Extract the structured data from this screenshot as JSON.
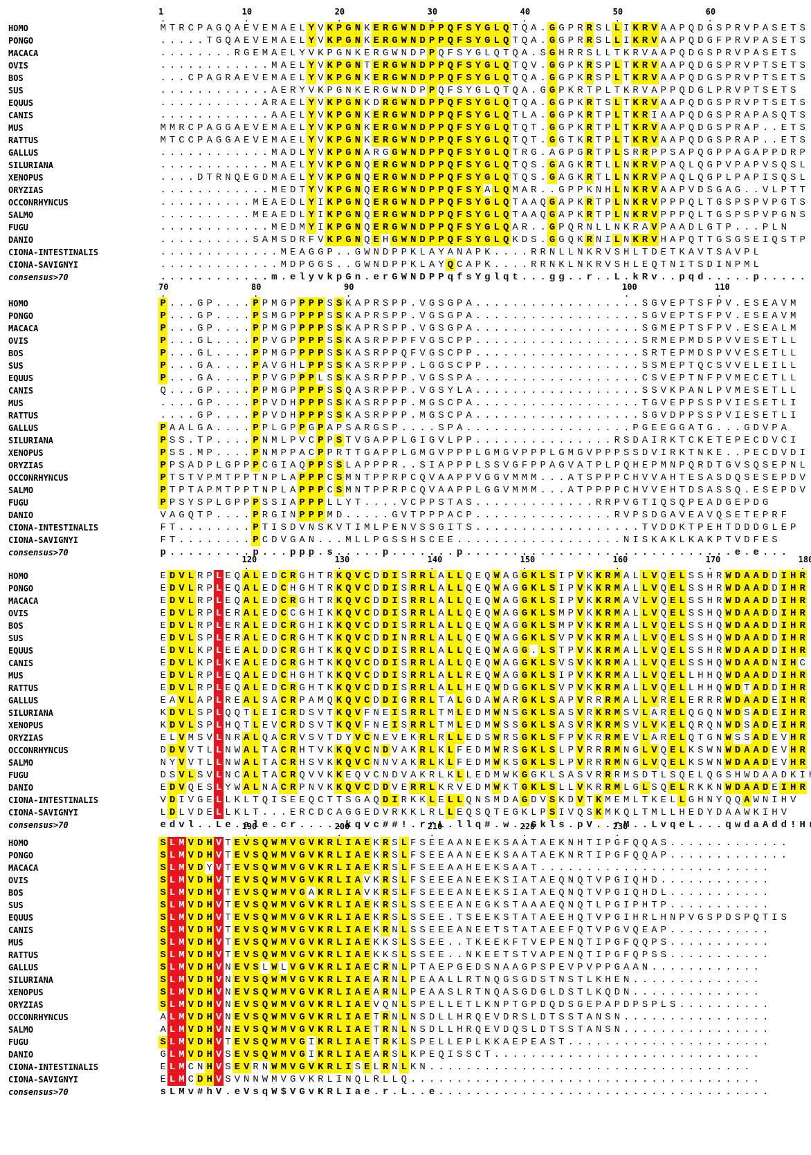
{
  "consensus_label": "consensus>70",
  "blocks": [
    {
      "start": 1,
      "ticks": [
        "1",
        "10",
        "20",
        "30",
        "40",
        "50",
        "60"
      ],
      "tick_positions": [
        1,
        10,
        20,
        30,
        40,
        50,
        60
      ],
      "rows": [
        {
          "name": "HOMO",
          "seq": "MTRCPAGQAEVEMAELYVKPGNKERGWNDPPQFSYGLQTQA.GGPRRSLLIKRVAAPQDGSPRVPASETS"
        },
        {
          "name": "PONGO",
          "seq": ".....TGQAEVEMAELYVKPGNKERGWNDPPQFSYGLQTQA.GGPRRSLLIKRVAAPQDGFPRVPASETS"
        },
        {
          "name": "MACACA",
          "seq": "........RGEMAELYVKPGNKERGWNDPPQFSYGLQTQA.SGHRRSLLTKRVAAPQDGSPRVPASETS"
        },
        {
          "name": "OVIS",
          "seq": "............MAELYVKPGNTERGWNDPPQFSYGLQTQV.GGPKRSPLTKRVAAPQDGSPRVPTSETS"
        },
        {
          "name": "BOS",
          "seq": "...CPAGRAEVEMAELYVKPGNKERGWNDPPQFSYGLQTQA.GGPKRSPLTKRVAAPQDGSPRVPTSETS"
        },
        {
          "name": "SUS",
          "seq": "............AERYVKPGNKERGWNDPPQFSYGLQTQA.GGPKRTPLTKRVAPPQDGLPRVPTSETS"
        },
        {
          "name": "EQUUS",
          "seq": "...........ARAELYVKPGNKDRGWNDPPQFSYGLQTQA.GGPKRTSLTKRVAAPQDGSPRVPTSETS"
        },
        {
          "name": "CANIS",
          "seq": "............AAELYVKPGNKERGWNDPPQFSYGLQTLA.GGPKRTPLTKRIAAPQDGSPRAPASQTS"
        },
        {
          "name": "MUS",
          "seq": "MMRCPAGGAEVEMAELYVKPGNKERGWNDPPQFSYGLQTQT.GGPKRTPLTKRVAAPQDGSPRAP..ETS"
        },
        {
          "name": "RATTUS",
          "seq": "MTCCPAGGAEVEMAELYVKPGNKERGWNDPPQFSYGLQTQT.GGTKRTPLTKRVAAPQDGSPRAP..ETS"
        },
        {
          "name": "GALLUS",
          "seq": "............MADLYVKPGNARGGWNDPPQFSYGLQTRG.AGPGRTPLSRRPPSAPQGPPAGAPPDRP"
        },
        {
          "name": "SILURIANA",
          "seq": "............MAELYVKPGNQERGWNDPPQFSYGLQTQS.GAGKRTLLNKRVPAQLQGPVPAPVSQSL"
        },
        {
          "name": "XENOPUS",
          "seq": "....DTRNQEGDMAELYVKPGNQERGWNDPPQFSYGLQTQS.GAGKRTLLNKRVPAQLQGPLPAPISQSL"
        },
        {
          "name": "ORYZIAS",
          "seq": "............MEDTYVKPGNQERGWNDPPQFSYALQMAR..GPPKNHLNKRVAAPVDSGAG..VLPTT"
        },
        {
          "name": "OCCONRHYNCUS",
          "seq": "..........MEAEDLYIKPGNQERGWNDPPQFSYGLQTAAQGAPKRTPLNKRVPPPQLTGSPSPVPGTS"
        },
        {
          "name": "SALMO",
          "seq": "..........MEAEDLYIKPGNQERGWNDPPQFSYGLQTAAQGAPKRTPLNKRVPPPQLTGSPSPVPGNS"
        },
        {
          "name": "FUGU",
          "seq": "............MEDMYIKPGNQERGWNDPPQFSYGLQAR..GPQRNLLNKRAVPAADLGTP...PLN"
        },
        {
          "name": "DANIO",
          "seq": "..........SAMSDRFVKPGNQEHGWNDPPQFSYGLQKDS.GGQKRNILNKRVHAPQTTGSGSEIQSTP"
        },
        {
          "name": "CIONA-INTESTINALIS",
          "seq": ".............MEAGGP..GWNDPPKLAYANAPK....RRNLLNKRVSHLTDETKAVTSAVPL"
        },
        {
          "name": "CIONA-SAVIGNYI",
          "seq": ".............MDPGGS..GWNDPPKLAYQCAPK....RRNKLNKRVSHLEQTNITSDINPML"
        },
        {
          "name": "consensus>70",
          "seq": "............m.elyvkpGn.erGWNDPPqfsYglqt...gg..r..L.kRv..pqd.....p.....",
          "cons": true
        }
      ]
    },
    {
      "start": 70,
      "ticks": [
        "70",
        "80",
        "90",
        "100",
        "110"
      ],
      "tick_positions": [
        1,
        11,
        21,
        51,
        61
      ],
      "rows": [
        {
          "name": "HOMO",
          "seq": "P...GP....PPMGPPPPSSKAPRSPP.VGSGPA..................SGVEPTSFPV.ESEAVM"
        },
        {
          "name": "PONGO",
          "seq": "P...GP....PSMGPPPPSSKAPRSPP.VGSGPA..................SGVEPTSFPV.ESEAVM"
        },
        {
          "name": "MACACA",
          "seq": "P...GP....PPMGPPPPSSKAPRSPP.VGSGPA..................SGMEPTSFPV.ESEALM"
        },
        {
          "name": "OVIS",
          "seq": "P...GL....PPVGPPPPSSKASRPPPFVGSCPP..................SRMEPMDSPVVESETLL"
        },
        {
          "name": "BOS",
          "seq": "P...GL....PPMGPPPPSSKASRPPQFVGSCPP..................SRTEPMDSPVVESETLL"
        },
        {
          "name": "SUS",
          "seq": "P...GA....PAVGHLPPSSKASRPPP.LGGSCPP.................SSMEPTQCSVVELEILL"
        },
        {
          "name": "EQUUS",
          "seq": "P...GA....PPVGPPPLSSKASRPPP.VGSSPA..................CSVEPTNFPVMECETLL"
        },
        {
          "name": "CANIS",
          "seq": "Q...GP....PPMGPPPPSSQASRPPP.VGSYLA..................SSVKPANLPVMESETLL"
        },
        {
          "name": "MUS",
          "seq": "....GP....PPVDHPPPSSKASRPPP.MGSCPA..................TGVEPPSSPVIESETLI"
        },
        {
          "name": "RATTUS",
          "seq": "....GP....PPVDHPPPSSKASRPPP.MGSCPA..................SGVDPPSSPVIESETLI"
        },
        {
          "name": "GALLUS",
          "seq": "PAALGA....PPLGPPGPAPSARGSP....SPA..................PGEEGGATG...GDVPA"
        },
        {
          "name": "SILURIANA",
          "seq": "PSS.TP....PNMLPVCPPSTVGAPPLGIGVLPP...............RSDAIRKTCKETEPECDVCI"
        },
        {
          "name": "XENOPUS",
          "seq": "PSS.MP....PNMPPACPPRTTGAPPLGMGVPPPLGMGVPPPLGMGVPPPSSDVIRKTNKE..PECDVDI"
        },
        {
          "name": "ORYZIAS",
          "seq": "PPSADPLGPPPCGIAQPPSSLAPPPR..SIAPPPLSSVGFPPAGVATPLPQHEPMNPQRDTGVSQSEPNL"
        },
        {
          "name": "OCCONRHYNCUS",
          "seq": "PTSTVPMTPPTNPLAPPPCSMNTPPRPCQVAAPPVGGVMMM...ATSPPPCHVVAHTESASDQSESEPDV"
        },
        {
          "name": "SALMO",
          "seq": "PTPTAPMTPPTNPLAPPPCSMNTPPRPCQVAAPPLGGVMMM...ATPPPPCHVVEHTDSASSQ.ESEPDV"
        },
        {
          "name": "FUGU",
          "seq": "PPSYSPLGPPPSSIAPPPLLYT....VCPPSTAS.............RRPVGTIQSQPEADGEPDG"
        },
        {
          "name": "DANIO",
          "seq": "VAGQTP....PRGINPPPMD.....GVTPPPACP...............RVPSDGAVEAVQSETEPRF"
        },
        {
          "name": "CIONA-INTESTINALIS",
          "seq": "FT........PTISDVNSKVTIMLPENVSSGITS..................TVDDKTPEHTDDDGLEP"
        },
        {
          "name": "CIONA-SAVIGNYI",
          "seq": "FT........PCDVGAN...MLLPGSSHSCEE..................NISKAKLKAKPTVDFES"
        },
        {
          "name": "consensus>70",
          "seq": "p.........p...ppp.s.....p.......p.............................e.e...",
          "cons": true
        }
      ]
    },
    {
      "start": 111,
      "ticks": [
        "120",
        "130",
        "140",
        "150",
        "160",
        "170",
        "180"
      ],
      "tick_positions": [
        10,
        20,
        30,
        40,
        50,
        60,
        70
      ],
      "rows": [
        {
          "name": "HOMO",
          "seq": "EDVLRPLEQALEDCRGHTRKQVCDDISRRLALLQEQWAGGKLSIPVKKRMALLVQELSSHRWDAADDIHR"
        },
        {
          "name": "PONGO",
          "seq": "EDVLRPLEQALEDCHGHTRKQVCDDISRRLALLQEQWAGGKLSIPVKKRMALLVQELSSHRWDAADDIHR"
        },
        {
          "name": "MACACA",
          "seq": "EDVLRPLEQALEDCRGHTRKQVCDDISRRLALLQEQWAGGKLSIPVKKRMAVLVQELSSHRWDAADDIHR"
        },
        {
          "name": "OVIS",
          "seq": "EDVLRPLERALEDCCGHIKKQVCDDISRRLALLQEQWAGGKLSMPVKKRMALLVQELSSHQWDAADDIHR"
        },
        {
          "name": "BOS",
          "seq": "EDVLRPLERALEDCRGHIKKQVCDDISRRLALLQEQWAGGKLSMPVKKRMALLVQELSSHQWDAADDIHR"
        },
        {
          "name": "SUS",
          "seq": "EDVLSPLERALEDCRGHTKKQVCDDINRRLALLQEQWAGGKLSVPVKKRMALLVQELSSHQWDAADDIHR"
        },
        {
          "name": "EQUUS",
          "seq": "EDVLKPLEEALDDCRGHTKKQVCDDISRRLALLQEQWAGG.LSTPVKKRMALLVQELSSHRWDAADDIHR"
        },
        {
          "name": "CANIS",
          "seq": "EDVLKPLKEALEDCRGHTKKQVCDDISRRLALLQEQWAGGKLSVSVKKRMALLVQELSSHQWDAADNIHC"
        },
        {
          "name": "MUS",
          "seq": "EDVLRPLEQALEDCHGHTKKQVCDDISRRLALLREQWAGGKLSIPVKKRMALLVQELLHHQWDAADDIHR"
        },
        {
          "name": "RATTUS",
          "seq": "EDVLRPLEQALEDCRGHTKKQVCDDISRRLALLHEQWDGGKLSVPVKKRMALLVQELLHHQWDTADDIHR"
        },
        {
          "name": "GALLUS",
          "seq": "EAVLAPLREALSACRPAMQKQVCDDIGRRLTALGDAWARGKLSAPVRRRMALLVRELERRRWDAADEIHR"
        },
        {
          "name": "SILURIANA",
          "seq": "KDVLSPLQQTLEICRDSVTKQVFNEISRRLTMLEDMWNSGKLSASVRKRMSVLARELQGQNWDSADEIHR"
        },
        {
          "name": "XENOPUS",
          "seq": "KDVLSPLHQTLEVCRDSVTKQVFNEISRRLTMLEDMWSSGKLSASVRKRMSVLVKELQRQNWDSADEIHR"
        },
        {
          "name": "ORYZIAS",
          "seq": "ELVMSVLNRALQACRVSVTDYVCNEVEKRLRLLEDSWRSGKLSFPVKRRMEVLARELQTGNWSSADEVHR"
        },
        {
          "name": "OCCONRHYNCUS",
          "seq": "DDVVTLLNWALTACRHTVKKQVCNDVAKRLKLFEDMWRSGKLSLPVRRRMNGLVQELKSWNWDAADEVHR"
        },
        {
          "name": "SALMO",
          "seq": "NYVVTLLNWALTACRHSVKKQVCNNVAKRLKLFEDMWKSGKLSLPVRRRMNGLVQELKSWNWDAADEVHR"
        },
        {
          "name": "FUGU",
          "seq": "DSVLSVLNCALTACRQVVKKEQVCNDVAKRLKLLEDMWKGGKLSASVRRRMSDTLSQELQGSHWDAADKIHL"
        },
        {
          "name": "DANIO",
          "seq": "EDVQESLYWALNACRPNVKKQVCDDVERRLKRVEDMWKTGKLSLLVKRRMLGLSQELRKKNWDAADEIHR"
        },
        {
          "name": "CIONA-INTESTINALIS",
          "seq": "VDIVGELLKLTQISEEQCTTSGAQDIRKKLELLQNSMDAGDVSKDVTKMEMLTKELLGHNYQQAWNIHV"
        },
        {
          "name": "CIONA-SAVIGNYI",
          "seq": "LDLVDELLKLT...ERCDCAGGEDVRKKLRLLEQSQTEGKLPSIVQSKMKQLTMLLHEDYDAAWKIHV"
        },
        {
          "name": "consensus>70",
          "seq": "edvl..Le.ale.cr.....kqvc##!.rrL.llq#.w..Gkls.pV..rM..LvqeL...qwdaAdd!Hr",
          "cons": true
        }
      ]
    },
    {
      "start": 181,
      "ticks": [
        "190",
        "200",
        "210",
        "220",
        "230"
      ],
      "tick_positions": [
        10,
        20,
        30,
        40,
        50
      ],
      "rows": [
        {
          "name": "HOMO",
          "seq": "SLMVDHVTEVSQWMVGVKRLIAEKRSLFSEEAANEEKSAATAEKNHTIPGFQQAS............."
        },
        {
          "name": "PONGO",
          "seq": "SLMVDHVTEVSQWMVGVKRLIAEKRSLFSEEAANEEKSAATAEKNRTIPGFQQAP............."
        },
        {
          "name": "MACACA",
          "seq": "SLMVDYVTEVSQWMVGVKRLIAEKRSLFSEEAAHEEKSAAT........................."
        },
        {
          "name": "OVIS",
          "seq": "SLMVDHVTEVSQWMVGVKRLIAVKRSLFSEEEANEEKSIATAEQNQTVPGIQHD............"
        },
        {
          "name": "BOS",
          "seq": "SLMVDHVTEVSQWMVGAKRLIAVKRSLFSEEEANEEKSIATAEQNQTVPGIQHDL..........."
        },
        {
          "name": "SUS",
          "seq": "SLMVDHVTEVSQWMVGVKRLIAEKRSLSSEEEANEGKSTAAAEQNQTLPGIPHTP..........."
        },
        {
          "name": "EQUUS",
          "seq": "SLMVDHVTEVSQWMVGVKRLIAEKRSLSSEE.TSEEKSTATAEEHQTVPGIHRLHNPVGSPDSPQTIS"
        },
        {
          "name": "CANIS",
          "seq": "SLMVDHVTEVSQWMVGVKRLIAEKRNLSSEEEANEETSTATAEEFQTVPGVQEAP..........."
        },
        {
          "name": "MUS",
          "seq": "SLMVDHVTEVSQWMVGVKRLIAEKKSLSSEE..TKEEKFTVEPENQTIPGFQQPS..........."
        },
        {
          "name": "RATTUS",
          "seq": "SLMVDHVTEVSQWMVGVKRLIAEKKSLSSEE..NKEETSTVAPENQTIPGFQPSS..........."
        },
        {
          "name": "GALLUS",
          "seq": "SLMVDHVNEVSLWLVGVKRLIAECRNLPTAEPGEDSNAAGPSPEVPVPPGAAN............"
        },
        {
          "name": "SILURIANA",
          "seq": "SLMVDHVNEVSQWMVGVKRLIAEARNLPEAALLRTNQGSGDSTNSTLKHEN.............."
        },
        {
          "name": "XENOPUS",
          "seq": "SLMVDHVNEVSQWMVGVKRLIAEARNLPEAASLRTNQASGDGLDSTLKQDN.............."
        },
        {
          "name": "ORYZIAS",
          "seq": "SLMVDHVNEVSQWMVGVKRLIAEVQNLSPELLETLKNPTGPDQDSGEPAPDPSPLS.........."
        },
        {
          "name": "OCCONRHYNCUS",
          "seq": "ALMVDHVNEVSQWMVGVKRLIAETRNLNSDLLHRQEVDRSLDTSSTANSN................"
        },
        {
          "name": "SALMO",
          "seq": "ALMVDHVNEVSQWMVGVKRLIAETRNLNSDLLHRQEVDQSLDTSSTANSN................"
        },
        {
          "name": "FUGU",
          "seq": "SLMVDHVTEVSQWMVGIKRLIAETRKLSPELLEPLKKAEPEAST......................"
        },
        {
          "name": "DANIO",
          "seq": "GLMVDHVSEVSQWMVGIKRLIAEARSLKPEQISSCT............................."
        },
        {
          "name": "CIONA-INTESTINALIS",
          "seq": "ELMCNHVSEVRNWMVGVKRLISELRNLKN..................................."
        },
        {
          "name": "CIONA-SAVIGNYI",
          "seq": "ELMCDHVSVNNWMVGVKRLINQLRLLQ......................................"
        },
        {
          "name": "consensus>70",
          "seq": "sLMv#hV.eVsqW$VGvKRLIae.r.L..e....................................",
          "cons": true
        }
      ]
    }
  ]
}
